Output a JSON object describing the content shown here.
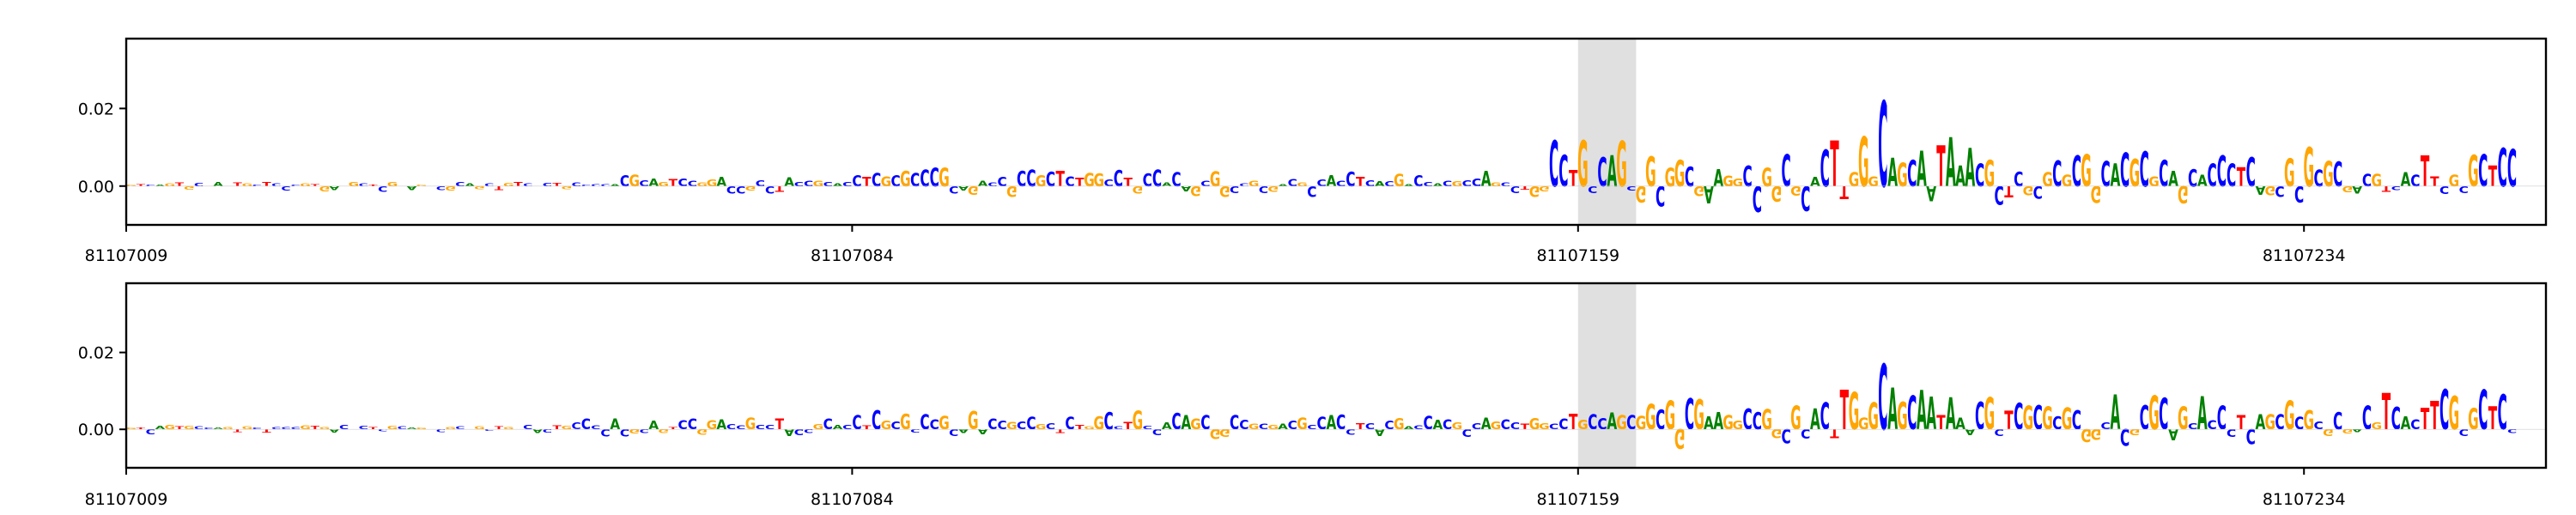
{
  "chart_data": [
    {
      "type": "sequence-logo",
      "title": "",
      "xlabel": "",
      "ylabel": "",
      "x_tick_labels": [
        "81107009",
        "81107084",
        "81107159",
        "81107234"
      ],
      "y_tick_labels": [
        "0.00",
        "0.02"
      ],
      "ylim": [
        -0.01,
        0.038
      ],
      "position_range": [
        81107009,
        81107258
      ],
      "highlight_region": [
        81107159,
        81107164
      ],
      "sequence": "GTCAGTGCCAGTGCTCCCGTGACGCTCGCAGACGCAGCTGTCACTGCCCCACGCAGTCCGGACCGCCTACCGCACCTCGCGCCCGCAGACCGCCGCTCTGGCCTGCCACAGCGGCCGCGACGCCACCTCACGACCACGCCAGCCTGGCCTGCCAGCGGCGGCGAAGGCCGGCGCACTTGGGCAGCAATAAACGCTCGCGCGCGGCACGCGCAGCACCCTCAGCGCGCGCGACGTCACTTCGCGCTCC",
      "series": [
        {
          "name": "",
          "peak_value": 0.022,
          "annotations": []
        },
        {
          "name": "",
          "peak_value": 0.017,
          "annotations": []
        }
      ],
      "tracks_profiles": [
        {
          "peak_at": 81107190,
          "segments": [
            {
              "from": 81107009,
              "to": 81107055,
              "scale": 0.0012,
              "neg": 0.0014
            },
            {
              "from": 81107055,
              "to": 81107084,
              "scale": 0.003,
              "neg": 0.002
            },
            {
              "from": 81107084,
              "to": 81107125,
              "scale": 0.005,
              "neg": 0.003
            },
            {
              "from": 81107125,
              "to": 81107155,
              "scale": 0.004,
              "neg": 0.003
            },
            {
              "from": 81107155,
              "to": 81107165,
              "scale": 0.012,
              "neg": 0.002
            },
            {
              "from": 81107165,
              "to": 81107185,
              "scale": 0.01,
              "neg": 0.008
            },
            {
              "from": 81107185,
              "to": 81107200,
              "scale": 0.013,
              "neg": 0.004
            },
            {
              "from": 81107200,
              "to": 81107234,
              "scale": 0.009,
              "neg": 0.005
            },
            {
              "from": 81107234,
              "to": 81107258,
              "scale": 0.011,
              "neg": 0.002
            }
          ]
        },
        {
          "peak_at": 81107190,
          "segments": [
            {
              "from": 81107009,
              "to": 81107055,
              "scale": 0.0012,
              "neg": 0.0014
            },
            {
              "from": 81107055,
              "to": 81107084,
              "scale": 0.003,
              "neg": 0.002
            },
            {
              "from": 81107084,
              "to": 81107125,
              "scale": 0.005,
              "neg": 0.003
            },
            {
              "from": 81107125,
              "to": 81107155,
              "scale": 0.004,
              "neg": 0.003
            },
            {
              "from": 81107155,
              "to": 81107165,
              "scale": 0.006,
              "neg": 0.002
            },
            {
              "from": 81107165,
              "to": 81107185,
              "scale": 0.008,
              "neg": 0.006
            },
            {
              "from": 81107185,
              "to": 81107200,
              "scale": 0.011,
              "neg": 0.004
            },
            {
              "from": 81107200,
              "to": 81107234,
              "scale": 0.009,
              "neg": 0.005
            },
            {
              "from": 81107234,
              "to": 81107258,
              "scale": 0.011,
              "neg": 0.002
            }
          ]
        }
      ],
      "colors": {
        "A": "#008000",
        "C": "#0000ff",
        "G": "#ffa500",
        "T": "#ff0000",
        "highlight": "#e0e0e0",
        "frame": "#000000"
      },
      "grid": false,
      "legend": "none"
    }
  ]
}
